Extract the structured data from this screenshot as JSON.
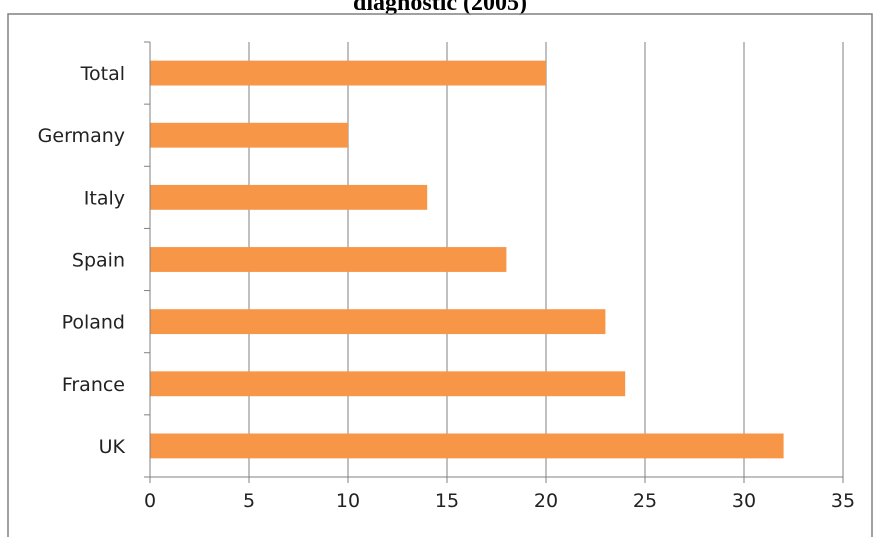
{
  "chart_data": {
    "type": "bar",
    "orientation": "horizontal",
    "title": "diagnostic (2005)",
    "categories": [
      "Total",
      "Germany",
      "Italy",
      "Spain",
      "Poland",
      "France",
      "UK"
    ],
    "values": [
      20,
      10,
      14,
      18,
      23,
      24,
      32
    ],
    "xlabel": "",
    "ylabel": "",
    "xlim": [
      0,
      35
    ],
    "xticks": [
      0,
      5,
      10,
      15,
      20,
      25,
      30,
      35
    ],
    "grid": "vertical",
    "legend": "none",
    "colors": {
      "bar": "#F79646",
      "grid": "#808080",
      "axis": "#808080",
      "border": "#808080"
    }
  }
}
